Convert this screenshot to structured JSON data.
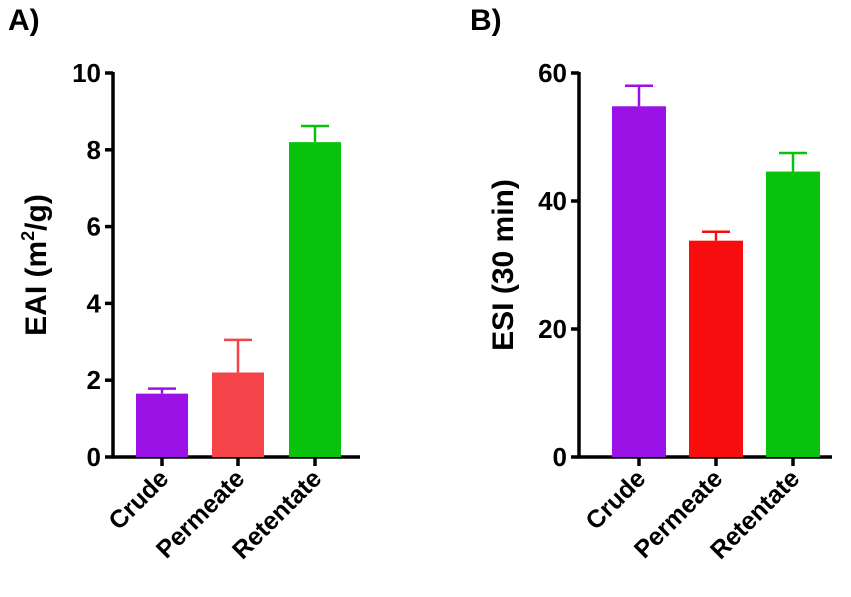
{
  "chart_data": [
    {
      "type": "bar",
      "panel_label": "A)",
      "categories": [
        "Crude",
        "Permeate",
        "Retentate"
      ],
      "values": [
        1.65,
        2.2,
        8.2
      ],
      "error_upper": [
        0.13,
        0.85,
        0.42
      ],
      "colors": [
        "#9b12e6",
        "#f4444a",
        "#09c20c"
      ],
      "ylabel_main": "EAI (m",
      "ylabel_sup": "2",
      "ylabel_tail": "/g)",
      "ylim": [
        0,
        10
      ],
      "yticks": [
        0,
        2,
        4,
        6,
        8,
        10
      ],
      "xlabel": ""
    },
    {
      "type": "bar",
      "panel_label": "B)",
      "categories": [
        "Crude",
        "Permeate",
        "Retentate"
      ],
      "values": [
        54.8,
        33.8,
        44.6
      ],
      "error_upper": [
        3.2,
        1.4,
        2.9
      ],
      "colors": [
        "#9b12e6",
        "#f70d0d",
        "#09c20c"
      ],
      "ylabel": "ESI (30 min)",
      "ylim": [
        0,
        60
      ],
      "yticks": [
        0,
        20,
        40,
        60
      ],
      "xlabel": ""
    }
  ]
}
